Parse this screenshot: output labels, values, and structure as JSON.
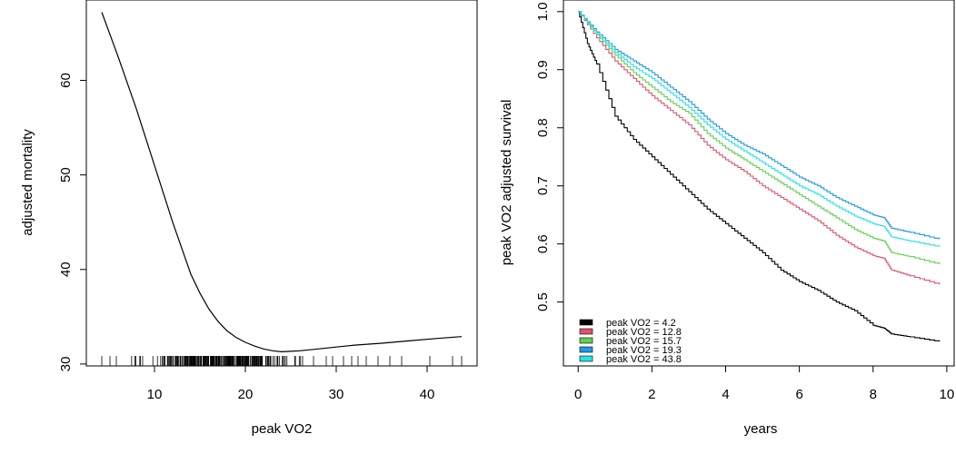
{
  "chart_data": [
    {
      "type": "line",
      "xlabel": "peak VO2",
      "ylabel": "adjusted mortality",
      "xlim": [
        2.5,
        45.5
      ],
      "ylim": [
        29.8,
        68.5
      ],
      "xticks": [
        "10",
        "20",
        "30",
        "40"
      ],
      "yticks": [
        "30",
        "40",
        "50",
        "60"
      ],
      "series": [
        {
          "x": [
            4.2,
            6,
            8,
            10,
            12,
            14,
            15,
            16,
            17,
            18,
            19,
            20,
            21,
            22,
            23,
            24,
            25,
            26,
            28,
            30,
            32,
            35,
            38,
            41,
            43.8
          ],
          "values": [
            67.2,
            62.5,
            57.0,
            51.0,
            45.0,
            39.5,
            37.5,
            35.8,
            34.5,
            33.5,
            32.8,
            32.3,
            31.9,
            31.6,
            31.4,
            31.3,
            31.35,
            31.4,
            31.6,
            31.8,
            32.0,
            32.2,
            32.45,
            32.7,
            32.9
          ]
        }
      ],
      "rug": {
        "description": "",
        "min": 4.2,
        "max": 43.8
      }
    },
    {
      "type": "line",
      "xlabel": "years",
      "ylabel": "peak VO2 adjusted survival",
      "xlim": [
        -0.4,
        10.2
      ],
      "ylim": [
        0.39,
        1.02
      ],
      "xticks": [
        "0",
        "2",
        "4",
        "6",
        "8",
        "10"
      ],
      "yticks": [
        "0.5",
        "0.6",
        "0.7",
        "0.8",
        "0.9",
        "1.0"
      ],
      "legend_position": "bottom-left",
      "series": [
        {
          "name": "peak VO2 = 4.2",
          "color": "#000000",
          "x": [
            0,
            0.25,
            0.5,
            1,
            1.5,
            2,
            2.5,
            3,
            3.5,
            4,
            4.5,
            5,
            5.5,
            6,
            6.5,
            7,
            7.5,
            8,
            8.3,
            8.5,
            9,
            9.8
          ],
          "values": [
            1.0,
            0.945,
            0.91,
            0.82,
            0.78,
            0.75,
            0.72,
            0.69,
            0.66,
            0.635,
            0.61,
            0.585,
            0.555,
            0.535,
            0.52,
            0.5,
            0.485,
            0.46,
            0.455,
            0.445,
            0.44,
            0.432
          ]
        },
        {
          "name": "peak VO2 = 12.8",
          "color": "#DF536B",
          "x": [
            0,
            0.5,
            1,
            1.5,
            2,
            2.5,
            3,
            3.5,
            4,
            4.5,
            5,
            5.5,
            6,
            6.5,
            7,
            7.5,
            8,
            8.3,
            8.5,
            9,
            9.8
          ],
          "values": [
            1.0,
            0.955,
            0.915,
            0.885,
            0.855,
            0.83,
            0.805,
            0.77,
            0.745,
            0.725,
            0.7,
            0.68,
            0.66,
            0.64,
            0.615,
            0.595,
            0.58,
            0.575,
            0.555,
            0.545,
            0.53
          ]
        },
        {
          "name": "peak VO2 = 15.7",
          "color": "#61D04F",
          "x": [
            0,
            0.5,
            1,
            1.5,
            2,
            2.5,
            3,
            3.5,
            4,
            4.5,
            5,
            5.5,
            6,
            6.5,
            7,
            7.5,
            8,
            8.3,
            8.5,
            9,
            9.8
          ],
          "values": [
            1.0,
            0.96,
            0.925,
            0.895,
            0.87,
            0.845,
            0.825,
            0.79,
            0.765,
            0.745,
            0.725,
            0.705,
            0.685,
            0.665,
            0.645,
            0.625,
            0.61,
            0.605,
            0.585,
            0.578,
            0.565
          ]
        },
        {
          "name": "peak VO2 = 19.3",
          "color": "#2297E6",
          "x": [
            0,
            0.5,
            1,
            1.5,
            2,
            2.5,
            3,
            3.5,
            4,
            4.5,
            5,
            5.5,
            6,
            6.5,
            7,
            7.5,
            8,
            8.3,
            8.5,
            9,
            9.8
          ],
          "values": [
            1.0,
            0.965,
            0.935,
            0.915,
            0.895,
            0.87,
            0.845,
            0.815,
            0.79,
            0.77,
            0.755,
            0.735,
            0.715,
            0.7,
            0.68,
            0.665,
            0.65,
            0.645,
            0.627,
            0.62,
            0.608
          ]
        },
        {
          "name": "peak VO2 = 43.8",
          "color": "#28E2E5",
          "x": [
            0,
            0.5,
            1,
            1.5,
            2,
            2.5,
            3,
            3.5,
            4,
            4.5,
            5,
            5.5,
            6,
            6.5,
            7,
            7.5,
            8,
            8.3,
            8.5,
            9,
            9.8
          ],
          "values": [
            1.0,
            0.962,
            0.93,
            0.905,
            0.885,
            0.86,
            0.835,
            0.805,
            0.78,
            0.76,
            0.74,
            0.72,
            0.7,
            0.685,
            0.665,
            0.648,
            0.635,
            0.63,
            0.612,
            0.605,
            0.595
          ]
        }
      ]
    }
  ]
}
